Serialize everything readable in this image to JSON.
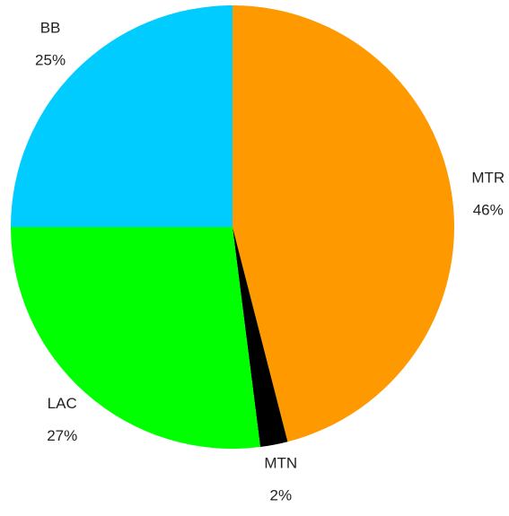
{
  "chart_data": {
    "type": "pie",
    "categories": [
      "MTR",
      "MTN",
      "LAC",
      "BB"
    ],
    "values": [
      46,
      2,
      27,
      25
    ],
    "value_labels": [
      "46%",
      "2%",
      "27%",
      "25%"
    ],
    "colors": [
      "#ff9900",
      "#000000",
      "#00ff00",
      "#00ccff"
    ]
  }
}
